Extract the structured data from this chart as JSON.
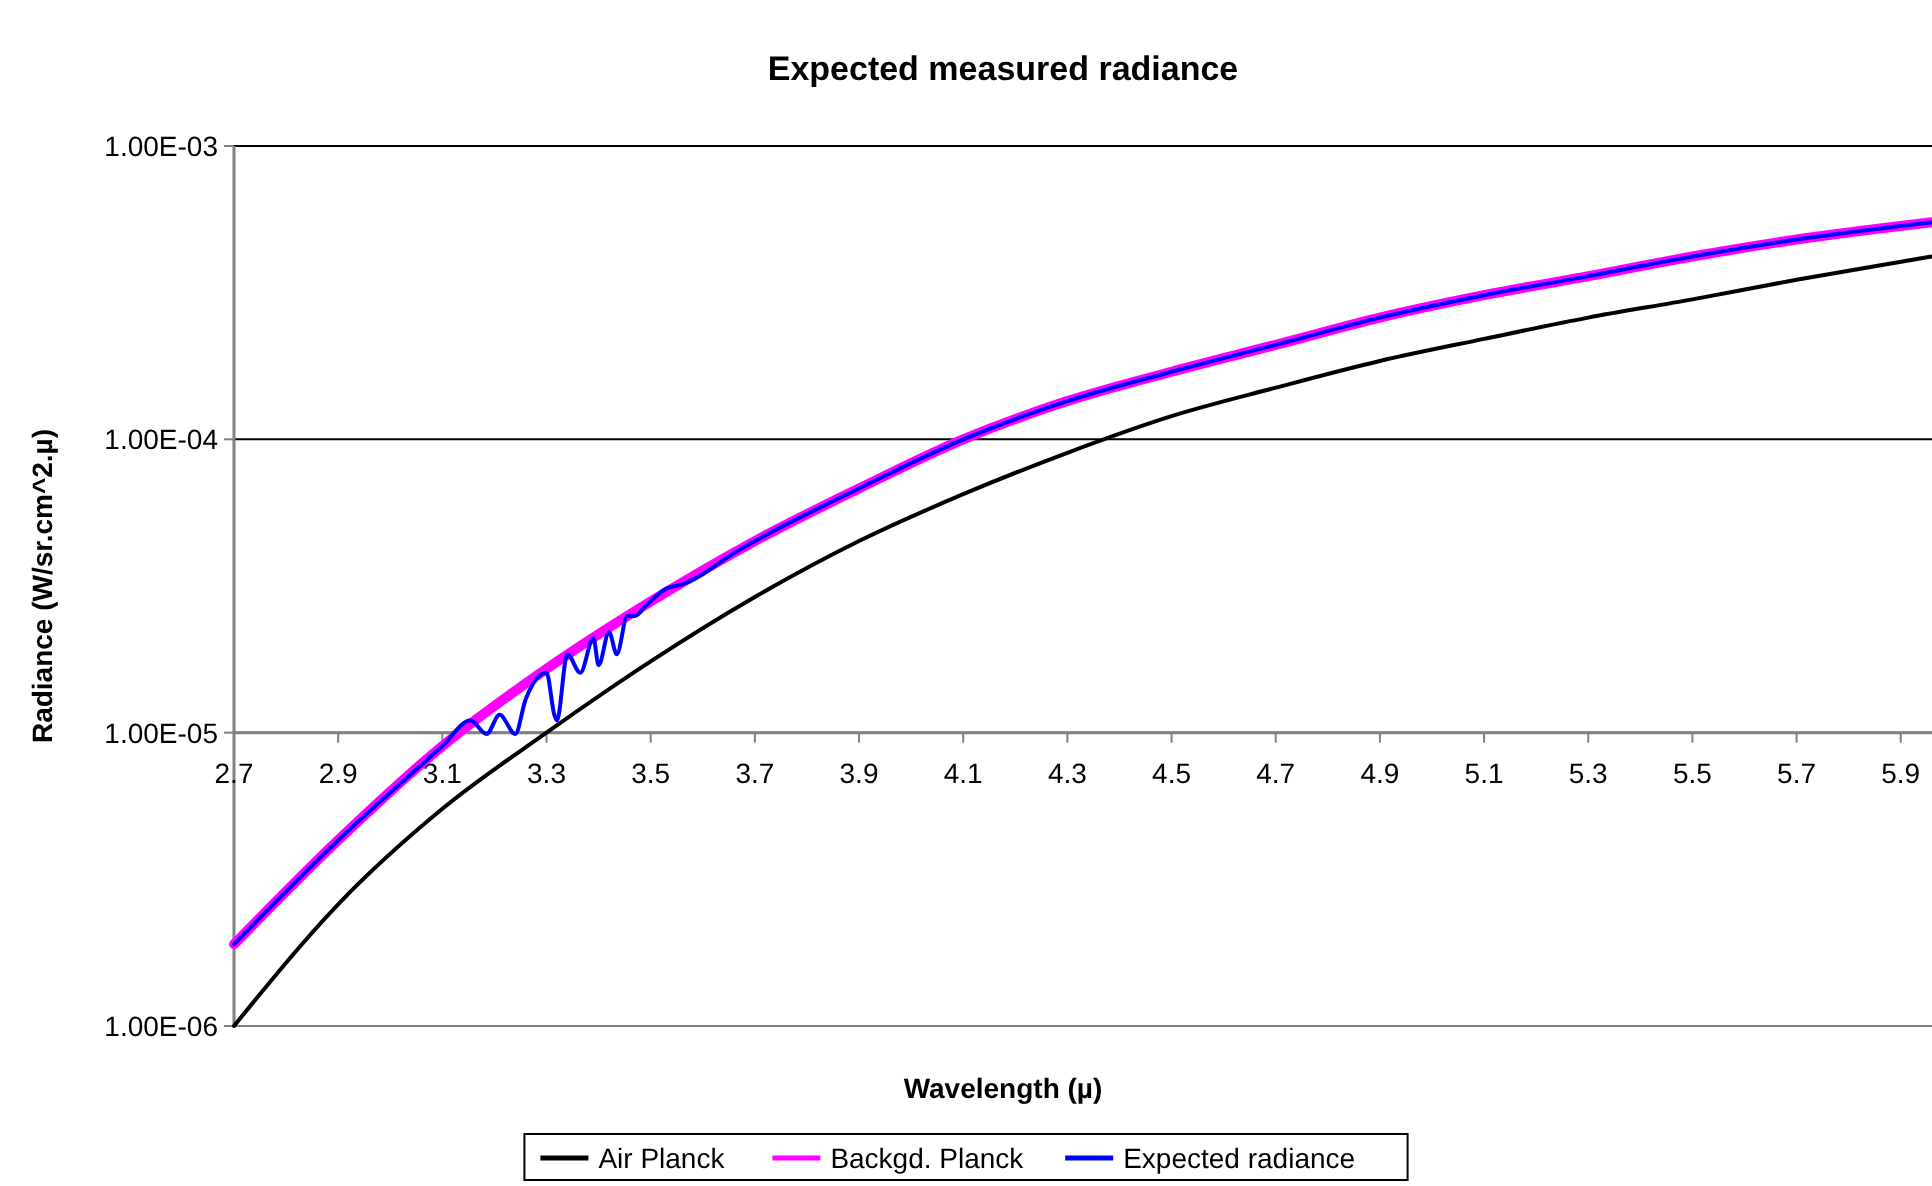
{
  "chart_data": {
    "type": "line",
    "title": "Expected measured radiance",
    "xlabel": "Wavelength (µ)",
    "ylabel": "Radiance (W/sr.cm^2.µ)",
    "x": [
      2.7,
      2.9,
      3.1,
      3.3,
      3.5,
      3.7,
      3.9,
      4.1,
      4.3,
      4.5,
      4.7,
      4.9,
      5.1,
      5.3,
      5.5,
      5.7,
      5.96
    ],
    "series": [
      {
        "name": "Air Planck",
        "color": "#000000",
        "values": [
          1e-06,
          2.6e-06,
          5.5e-06,
          1e-05,
          1.75e-05,
          2.9e-05,
          4.5e-05,
          6.5e-05,
          9e-05,
          0.00012,
          0.00015,
          0.000185,
          0.00022,
          0.00026,
          0.0003,
          0.00035,
          0.00042
        ]
      },
      {
        "name": "Backgd. Planck",
        "color": "#ff00ff",
        "values": [
          1.9e-06,
          4.3e-06,
          9e-06,
          1.65e-05,
          2.8e-05,
          4.5e-05,
          6.8e-05,
          0.0001,
          0.000135,
          0.00017,
          0.00021,
          0.00026,
          0.00031,
          0.00036,
          0.00042,
          0.00048,
          0.00055
        ]
      },
      {
        "name": "Expected radiance",
        "color": "#0000ff",
        "x": [
          2.7,
          2.9,
          3.1,
          3.154,
          3.185,
          3.21,
          3.24,
          3.26,
          3.3,
          3.315,
          3.32,
          3.34,
          3.365,
          3.39,
          3.4,
          3.42,
          3.435,
          3.455,
          3.47,
          3.49,
          3.53,
          3.56,
          3.585,
          3.66,
          3.71,
          3.9,
          4.1,
          4.3,
          4.5,
          4.7,
          4.9,
          5.1,
          5.3,
          5.5,
          5.7,
          5.96
        ],
        "values": [
          1.9e-06,
          4.3e-06,
          9e-06,
          1.1e-05,
          9.9e-06,
          1.15e-05,
          9.9e-06,
          1.3e-05,
          1.6e-05,
          1.15e-05,
          1.1e-05,
          1.85e-05,
          1.6e-05,
          2.1e-05,
          1.7e-05,
          2.2e-05,
          1.85e-05,
          2.5e-05,
          2.5e-05,
          2.7e-05,
          3.1e-05,
          3.2e-05,
          3.35e-05,
          4.1e-05,
          4.6e-05,
          6.8e-05,
          0.0001,
          0.000135,
          0.00017,
          0.00021,
          0.00026,
          0.00031,
          0.00036,
          0.00042,
          0.00048,
          0.00055
        ]
      }
    ],
    "log": "y",
    "ylim": [
      1e-06,
      0.001
    ],
    "yticks": [
      {
        "value": 1e-06,
        "label": "1.00E-06"
      },
      {
        "value": 1e-05,
        "label": "1.00E-05"
      },
      {
        "value": 0.0001,
        "label": "1.00E-04"
      },
      {
        "value": 0.001,
        "label": "1.00E-03"
      }
    ],
    "xlim": [
      2.7,
      5.96
    ],
    "xticks": [
      2.7,
      2.9,
      3.1,
      3.3,
      3.5,
      3.7,
      3.9,
      4.1,
      4.3,
      4.5,
      4.7,
      4.9,
      5.1,
      5.3,
      5.5,
      5.7,
      5.9
    ],
    "grid": "y",
    "legend": "bottom",
    "marker": "none",
    "line_style": "solid"
  }
}
